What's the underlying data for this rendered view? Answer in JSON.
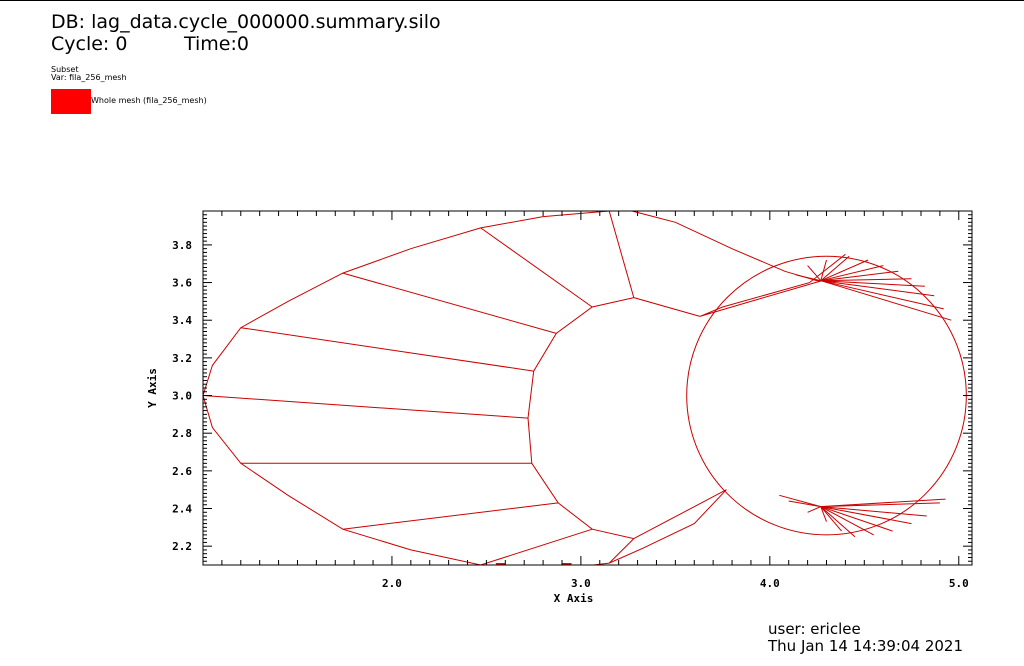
{
  "header": {
    "db_line": "DB: lag_data.cycle_000000.summary.silo",
    "cycle_label": "Cycle: 0",
    "time_label": "Time:0"
  },
  "legend": {
    "title": "Subset",
    "var_line": "Var: fila_256_mesh",
    "entry_label": "Whole mesh (fila_256_mesh)",
    "entry_color": "#ff0000"
  },
  "footer": {
    "user": "user: ericlee",
    "date": "Thu Jan 14 14:39:04 2021"
  },
  "chart_data": {
    "type": "mesh",
    "xlabel": "X Axis",
    "ylabel": "Y Axis",
    "xlim": [
      1.0,
      5.07
    ],
    "ylim": [
      2.1,
      3.98
    ],
    "xticks": [
      2.0,
      3.0,
      4.0,
      5.0
    ],
    "yticks": [
      2.2,
      2.4,
      2.6,
      2.8,
      3.0,
      3.2,
      3.4,
      3.6,
      3.8
    ],
    "grid": false,
    "line_color": "#cc0000",
    "outer_boundary": [
      [
        1.0,
        3.0
      ],
      [
        1.05,
        3.16
      ],
      [
        1.2,
        3.36
      ],
      [
        1.45,
        3.5
      ],
      [
        1.74,
        3.65
      ],
      [
        2.1,
        3.78
      ],
      [
        2.47,
        3.89
      ],
      [
        2.8,
        3.95
      ],
      [
        3.15,
        3.98
      ],
      [
        3.27,
        3.98
      ],
      [
        3.5,
        3.92
      ],
      [
        3.8,
        3.78
      ],
      [
        4.08,
        3.66
      ],
      [
        4.25,
        3.61
      ],
      [
        4.3,
        3.61
      ],
      [
        4.27,
        3.608
      ],
      [
        4.24,
        3.6
      ],
      [
        3.9,
        3.5
      ],
      [
        3.63,
        3.42
      ],
      [
        3.75,
        3.47
      ],
      [
        4.21,
        3.6
      ],
      [
        4.4,
        3.75
      ]
    ],
    "lower_boundary": [
      [
        1.0,
        3.0
      ],
      [
        1.05,
        2.83
      ],
      [
        1.2,
        2.64
      ],
      [
        1.45,
        2.47
      ],
      [
        1.74,
        2.29
      ],
      [
        2.1,
        2.18
      ],
      [
        2.47,
        2.1
      ],
      [
        2.6,
        2.08
      ],
      [
        2.9,
        2.08
      ],
      [
        3.15,
        2.11
      ],
      [
        3.33,
        2.19
      ],
      [
        3.6,
        2.32
      ],
      [
        3.77,
        2.5
      ]
    ],
    "inner_boundary": [
      [
        2.72,
        2.88
      ],
      [
        2.75,
        3.13
      ],
      [
        2.87,
        3.33
      ],
      [
        3.06,
        3.47
      ],
      [
        3.28,
        3.52
      ],
      [
        3.63,
        3.42
      ]
    ],
    "inner_lower": [
      [
        2.72,
        2.88
      ],
      [
        2.74,
        2.64
      ],
      [
        2.88,
        2.43
      ],
      [
        3.06,
        2.29
      ],
      [
        3.28,
        2.24
      ],
      [
        3.77,
        2.5
      ]
    ],
    "radial_edges": [
      [
        [
          1.0,
          3.0
        ],
        [
          2.72,
          2.88
        ]
      ],
      [
        [
          1.2,
          3.36
        ],
        [
          2.75,
          3.13
        ]
      ],
      [
        [
          1.74,
          3.65
        ],
        [
          2.87,
          3.33
        ]
      ],
      [
        [
          2.47,
          3.89
        ],
        [
          3.06,
          3.47
        ]
      ],
      [
        [
          3.15,
          3.98
        ],
        [
          3.28,
          3.52
        ]
      ],
      [
        [
          1.2,
          2.64
        ],
        [
          2.74,
          2.64
        ]
      ],
      [
        [
          1.74,
          2.29
        ],
        [
          2.88,
          2.43
        ]
      ],
      [
        [
          2.47,
          2.1
        ],
        [
          3.06,
          2.29
        ]
      ],
      [
        [
          3.28,
          2.24
        ],
        [
          3.15,
          2.11
        ]
      ]
    ],
    "circle": {
      "center": [
        4.3,
        3.0
      ],
      "radius": 0.74
    },
    "upper_fan_origin": [
      4.27,
      3.61
    ],
    "upper_fan_targets": [
      [
        4.14,
        3.64
      ],
      [
        4.2,
        3.69
      ],
      [
        4.3,
        3.72
      ],
      [
        4.42,
        3.74
      ],
      [
        4.52,
        3.72
      ],
      [
        4.6,
        3.69
      ],
      [
        4.68,
        3.66
      ],
      [
        4.75,
        3.62
      ],
      [
        4.82,
        3.58
      ],
      [
        4.87,
        3.53
      ],
      [
        4.92,
        3.46
      ],
      [
        4.96,
        3.4
      ]
    ],
    "lower_fan_origin": [
      4.27,
      2.41
    ],
    "lower_fan_targets": [
      [
        4.05,
        2.47
      ],
      [
        4.1,
        2.44
      ],
      [
        4.2,
        2.38
      ],
      [
        4.3,
        2.33
      ],
      [
        4.38,
        2.28
      ],
      [
        4.45,
        2.25
      ],
      [
        4.55,
        2.26
      ],
      [
        4.65,
        2.28
      ],
      [
        4.75,
        2.32
      ],
      [
        4.83,
        2.36
      ],
      [
        4.9,
        2.43
      ],
      [
        4.93,
        2.45
      ]
    ]
  }
}
